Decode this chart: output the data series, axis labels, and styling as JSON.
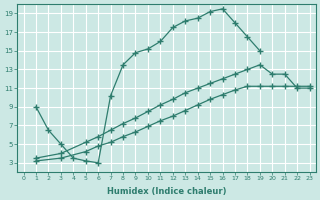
{
  "xlabel": "Humidex (Indice chaleur)",
  "bg_color": "#cce8e4",
  "grid_color": "#ffffff",
  "line_color": "#2e7d6e",
  "xlim": [
    -0.5,
    23.5
  ],
  "ylim": [
    2.0,
    20.0
  ],
  "xticks": [
    0,
    1,
    2,
    3,
    4,
    5,
    6,
    7,
    8,
    9,
    10,
    11,
    12,
    13,
    14,
    15,
    16,
    17,
    18,
    19,
    20,
    21,
    22,
    23
  ],
  "yticks": [
    3,
    5,
    7,
    9,
    11,
    13,
    15,
    17,
    19
  ],
  "line1_x": [
    1,
    2,
    3,
    4,
    5,
    6,
    7,
    8,
    9,
    10,
    11,
    12,
    13,
    14,
    15,
    16,
    17,
    18,
    19
  ],
  "line1_y": [
    9.0,
    6.5,
    5.0,
    3.5,
    3.2,
    3.0,
    10.2,
    13.5,
    14.8,
    15.2,
    16.0,
    17.5,
    18.2,
    18.5,
    19.2,
    19.5,
    18.0,
    16.5,
    15.0
  ],
  "line2_x": [
    1,
    3,
    5,
    6,
    7,
    8,
    9,
    10,
    11,
    12,
    13,
    14,
    15,
    16,
    17,
    18,
    19,
    20,
    21,
    22,
    23
  ],
  "line2_y": [
    3.5,
    4.0,
    5.2,
    5.8,
    6.5,
    7.2,
    7.8,
    8.5,
    9.2,
    9.8,
    10.5,
    11.0,
    11.5,
    12.0,
    12.5,
    13.0,
    13.5,
    12.5,
    12.5,
    11.0,
    11.0
  ],
  "line3_x": [
    1,
    3,
    5,
    6,
    7,
    8,
    9,
    10,
    11,
    12,
    13,
    14,
    15,
    16,
    17,
    18,
    19,
    20,
    21,
    22,
    23
  ],
  "line3_y": [
    3.2,
    3.5,
    4.2,
    4.8,
    5.2,
    5.8,
    6.3,
    6.9,
    7.5,
    8.0,
    8.6,
    9.2,
    9.8,
    10.3,
    10.8,
    11.2,
    11.2,
    11.2,
    11.2,
    11.2,
    11.2
  ]
}
